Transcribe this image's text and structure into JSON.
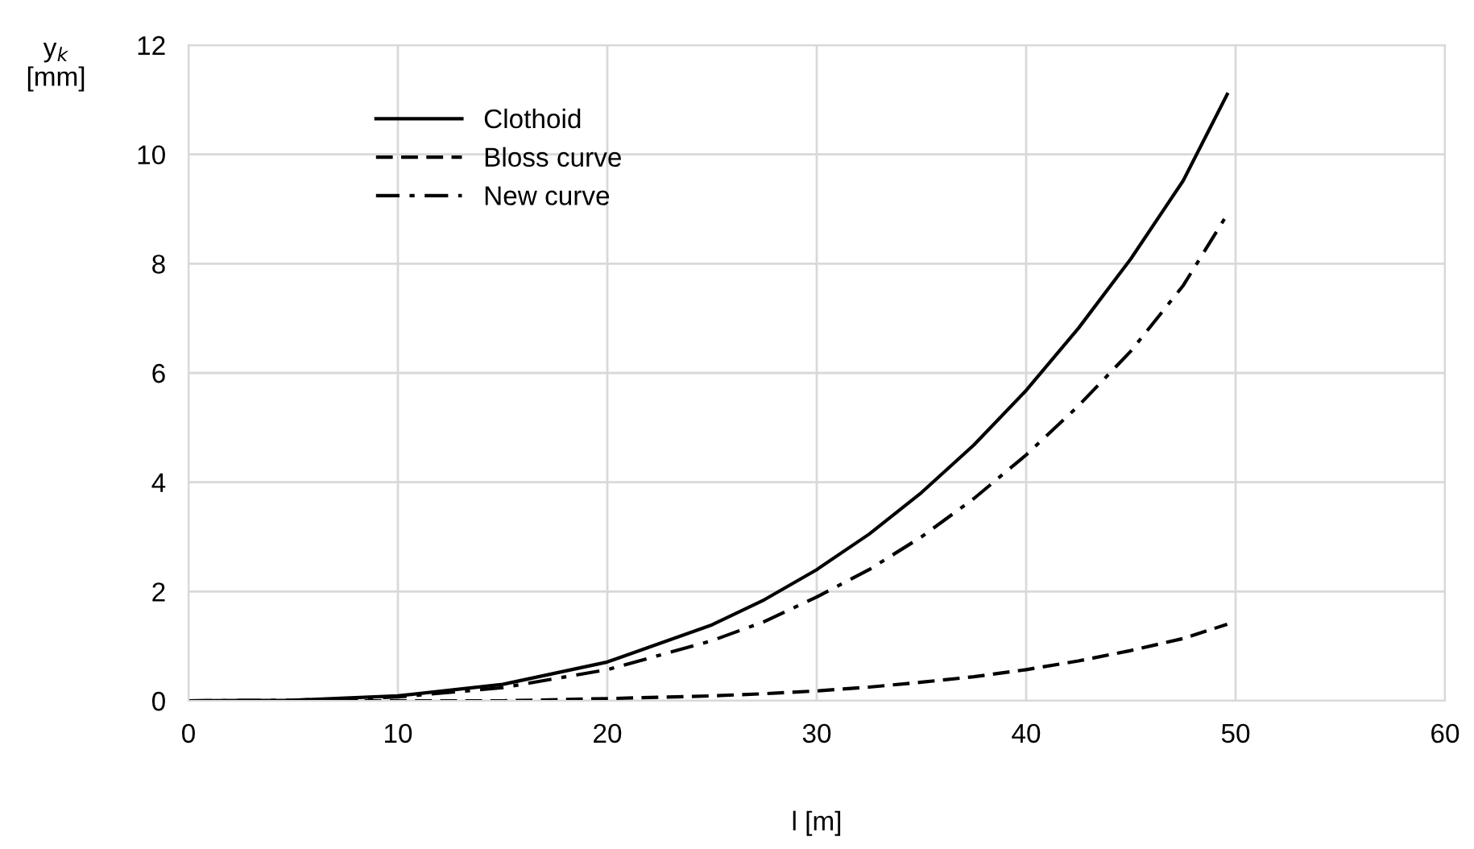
{
  "chart_data": {
    "type": "line",
    "xlabel": "l [m]",
    "ylabel": "y$_{k}$\n[mm]",
    "x": [
      0,
      5,
      10,
      15,
      20,
      25,
      27.5,
      30,
      32.5,
      35,
      37.5,
      40,
      42.5,
      45,
      47.5,
      49.6
    ],
    "series": [
      {
        "name": "Clothoid",
        "color": "#000000",
        "line_style": "solid",
        "values": [
          0,
          0.01,
          0.09,
          0.3,
          0.71,
          1.39,
          1.85,
          2.4,
          3.05,
          3.81,
          4.68,
          5.68,
          6.82,
          8.09,
          9.52,
          11.1
        ]
      },
      {
        "name": "Bloss curve",
        "color": "#000000",
        "line_style": "dashed",
        "values": [
          0,
          0,
          0,
          0,
          0.04,
          0.09,
          0.13,
          0.18,
          0.25,
          0.34,
          0.44,
          0.57,
          0.73,
          0.92,
          1.14,
          1.4
        ]
      },
      {
        "name": "New curve",
        "color": "#000000",
        "line_style": "dashdot",
        "values": [
          0,
          0.01,
          0.07,
          0.24,
          0.57,
          1.1,
          1.45,
          1.9,
          2.4,
          3.0,
          3.7,
          4.5,
          5.4,
          6.4,
          7.6,
          8.9
        ]
      }
    ],
    "xlim": [
      0,
      60
    ],
    "xticks": [
      0,
      10,
      20,
      30,
      40,
      50,
      60
    ],
    "ylim": [
      0,
      12
    ],
    "yticks": [
      0,
      2,
      4,
      6,
      8,
      10,
      12
    ],
    "grid": true,
    "legend": "top left",
    "marker": "none"
  }
}
